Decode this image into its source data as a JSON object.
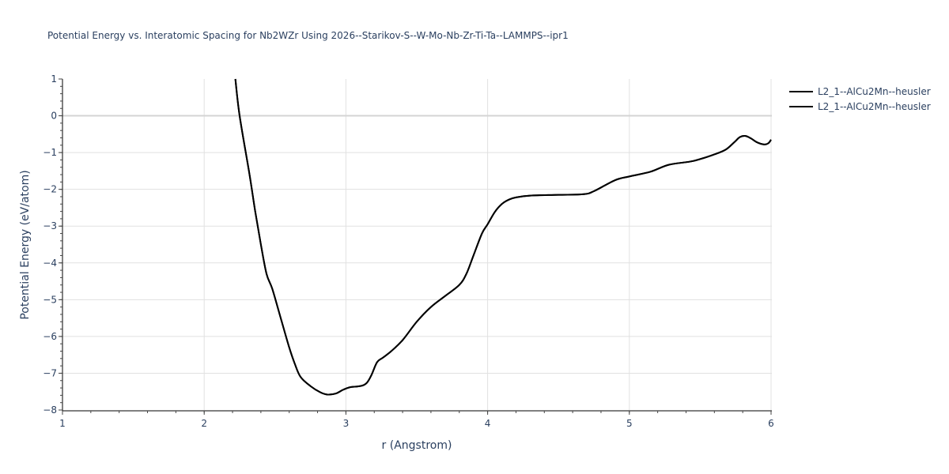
{
  "title": "Potential Energy vs. Interatomic Spacing for Nb2WZr Using 2026--Starikov-S--W-Mo-Nb-Zr-Ti-Ta--LAMMPS--ipr1",
  "legend": {
    "items": [
      {
        "label": "L2_1--AlCu2Mn--heusler",
        "color": "#000000"
      },
      {
        "label": "L2_1--AlCu2Mn--heusler",
        "color": "#000000"
      }
    ]
  },
  "axes": {
    "x": {
      "title": "r (Angstrom)",
      "ticks": [
        "1",
        "2",
        "3",
        "4",
        "5",
        "6"
      ]
    },
    "y": {
      "title": "Potential Energy (eV/atom)",
      "ticks": [
        "1",
        "0",
        "−1",
        "−2",
        "−3",
        "−4",
        "−5",
        "−6",
        "−7",
        "−8"
      ]
    }
  },
  "chart_data": {
    "type": "line",
    "title": "Potential Energy vs. Interatomic Spacing for Nb2WZr Using 2026--Starikov-S--W-Mo-Nb-Zr-Ti-Ta--LAMMPS--ipr1",
    "xlabel": "r (Angstrom)",
    "ylabel": "Potential Energy (eV/atom)",
    "xlim": [
      1,
      6
    ],
    "ylim": [
      -8,
      1
    ],
    "grid": true,
    "legend_position": "right-top",
    "series": [
      {
        "name": "L2_1--AlCu2Mn--heusler",
        "color": "#000000",
        "x": [
          2.22,
          2.25,
          2.32,
          2.36,
          2.4,
          2.44,
          2.48,
          2.54,
          2.6,
          2.64,
          2.68,
          2.75,
          2.82,
          2.87,
          2.93,
          2.98,
          3.03,
          3.08,
          3.12,
          3.15,
          3.18,
          3.22,
          3.26,
          3.32,
          3.4,
          3.5,
          3.6,
          3.7,
          3.8,
          3.85,
          3.9,
          3.96,
          4.0,
          4.05,
          4.1,
          4.15,
          4.2,
          4.3,
          4.5,
          4.68,
          4.75,
          4.9,
          5.0,
          5.15,
          5.28,
          5.45,
          5.6,
          5.68,
          5.74,
          5.78,
          5.82,
          5.86,
          5.9,
          5.95,
          5.98,
          6.0
        ],
        "values": [
          1.0,
          0.0,
          -1.6,
          -2.6,
          -3.5,
          -4.3,
          -4.7,
          -5.5,
          -6.3,
          -6.75,
          -7.1,
          -7.35,
          -7.52,
          -7.58,
          -7.55,
          -7.45,
          -7.38,
          -7.36,
          -7.33,
          -7.25,
          -7.05,
          -6.7,
          -6.58,
          -6.4,
          -6.1,
          -5.6,
          -5.2,
          -4.9,
          -4.6,
          -4.3,
          -3.8,
          -3.2,
          -2.95,
          -2.62,
          -2.4,
          -2.28,
          -2.22,
          -2.17,
          -2.15,
          -2.13,
          -2.05,
          -1.75,
          -1.65,
          -1.52,
          -1.33,
          -1.23,
          -1.05,
          -0.92,
          -0.72,
          -0.58,
          -0.55,
          -0.62,
          -0.72,
          -0.78,
          -0.75,
          -0.65
        ]
      },
      {
        "name": "L2_1--AlCu2Mn--heusler",
        "color": "#000000",
        "x": [
          2.22,
          2.25,
          2.32,
          2.36,
          2.4,
          2.44,
          2.48,
          2.54,
          2.6,
          2.64,
          2.68,
          2.75,
          2.82,
          2.87,
          2.93,
          2.98,
          3.03,
          3.08,
          3.12,
          3.15,
          3.18,
          3.22,
          3.26,
          3.32,
          3.4,
          3.5,
          3.6,
          3.7,
          3.8,
          3.85,
          3.9,
          3.96,
          4.0,
          4.05,
          4.1,
          4.15,
          4.2,
          4.3,
          4.5,
          4.68,
          4.75,
          4.9,
          5.0,
          5.15,
          5.28,
          5.45,
          5.6,
          5.68,
          5.74,
          5.78,
          5.82,
          5.86,
          5.9,
          5.95,
          5.98,
          6.0
        ],
        "values": [
          1.0,
          0.0,
          -1.6,
          -2.6,
          -3.5,
          -4.3,
          -4.7,
          -5.5,
          -6.3,
          -6.75,
          -7.1,
          -7.35,
          -7.52,
          -7.58,
          -7.55,
          -7.45,
          -7.38,
          -7.36,
          -7.33,
          -7.25,
          -7.05,
          -6.7,
          -6.58,
          -6.4,
          -6.1,
          -5.6,
          -5.2,
          -4.9,
          -4.6,
          -4.3,
          -3.8,
          -3.2,
          -2.95,
          -2.62,
          -2.4,
          -2.28,
          -2.22,
          -2.17,
          -2.15,
          -2.13,
          -2.05,
          -1.75,
          -1.65,
          -1.52,
          -1.33,
          -1.23,
          -1.05,
          -0.92,
          -0.72,
          -0.58,
          -0.55,
          -0.62,
          -0.72,
          -0.78,
          -0.75,
          -0.65
        ]
      }
    ]
  }
}
